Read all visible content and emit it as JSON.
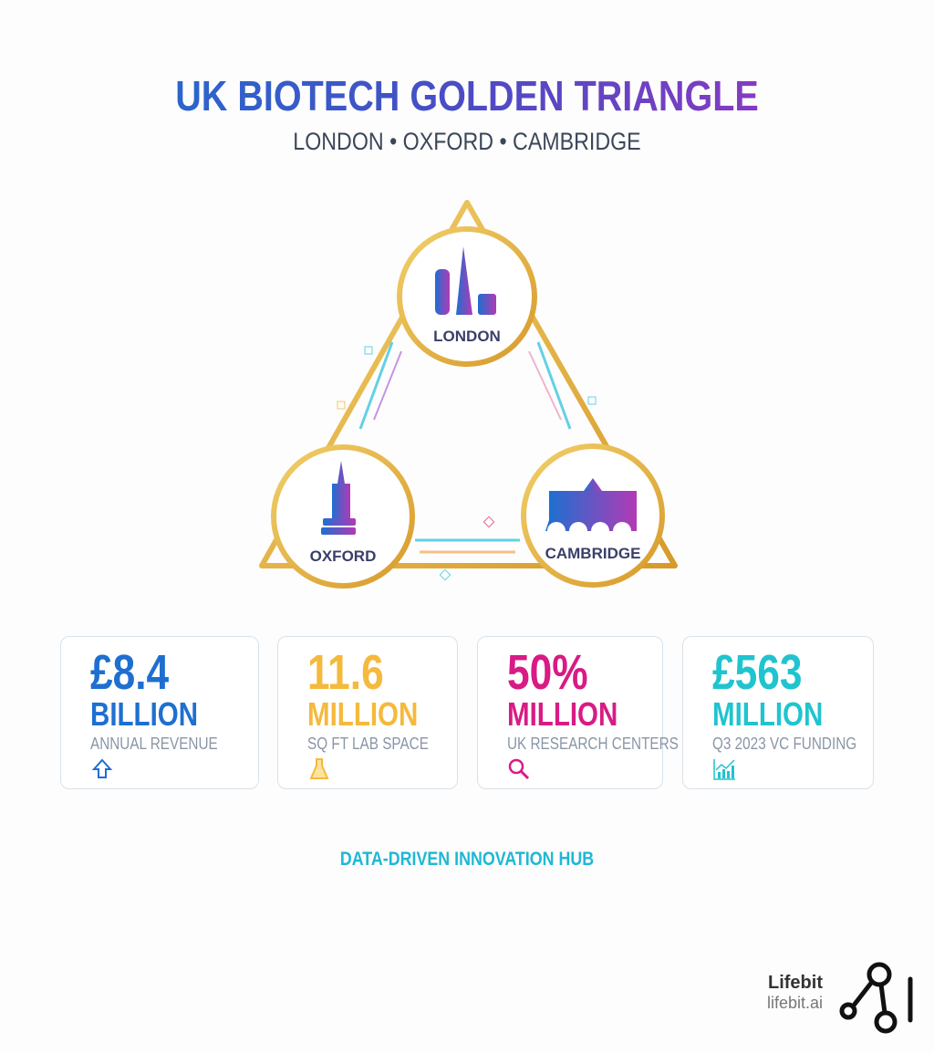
{
  "header": {
    "title": "UK BIOTECH GOLDEN TRIANGLE",
    "subtitle": "LONDON • OXFORD • CAMBRIDGE"
  },
  "triangle": {
    "nodes": [
      {
        "label": "LONDON",
        "icon": "skyline-icon"
      },
      {
        "label": "OXFORD",
        "icon": "spire-books-icon"
      },
      {
        "label": "CAMBRIDGE",
        "icon": "college-bridge-icon"
      }
    ],
    "accent": "#e0ac3a"
  },
  "stats": [
    {
      "value": "£8.4",
      "unit": "BILLION",
      "label": "ANNUAL REVENUE",
      "icon": "arrow-up-icon",
      "color": "#1e6fd0"
    },
    {
      "value": "11.6",
      "unit": "MILLION",
      "label": "SQ FT LAB SPACE",
      "icon": "flask-icon",
      "color": "#f5b93c"
    },
    {
      "value": "50%",
      "unit": "MILLION",
      "label": "UK RESEARCH CENTERS",
      "icon": "magnifier-icon",
      "color": "#d81b85"
    },
    {
      "value": "£563",
      "unit": "MILLION",
      "label": "Q3 2023 VC FUNDING",
      "icon": "bar-chart-icon",
      "color": "#1fc4cf"
    }
  ],
  "tagline": "DATA-DRIVEN INNOVATION HUB",
  "brand": {
    "name": "Lifebit",
    "url": "lifebit.ai"
  }
}
